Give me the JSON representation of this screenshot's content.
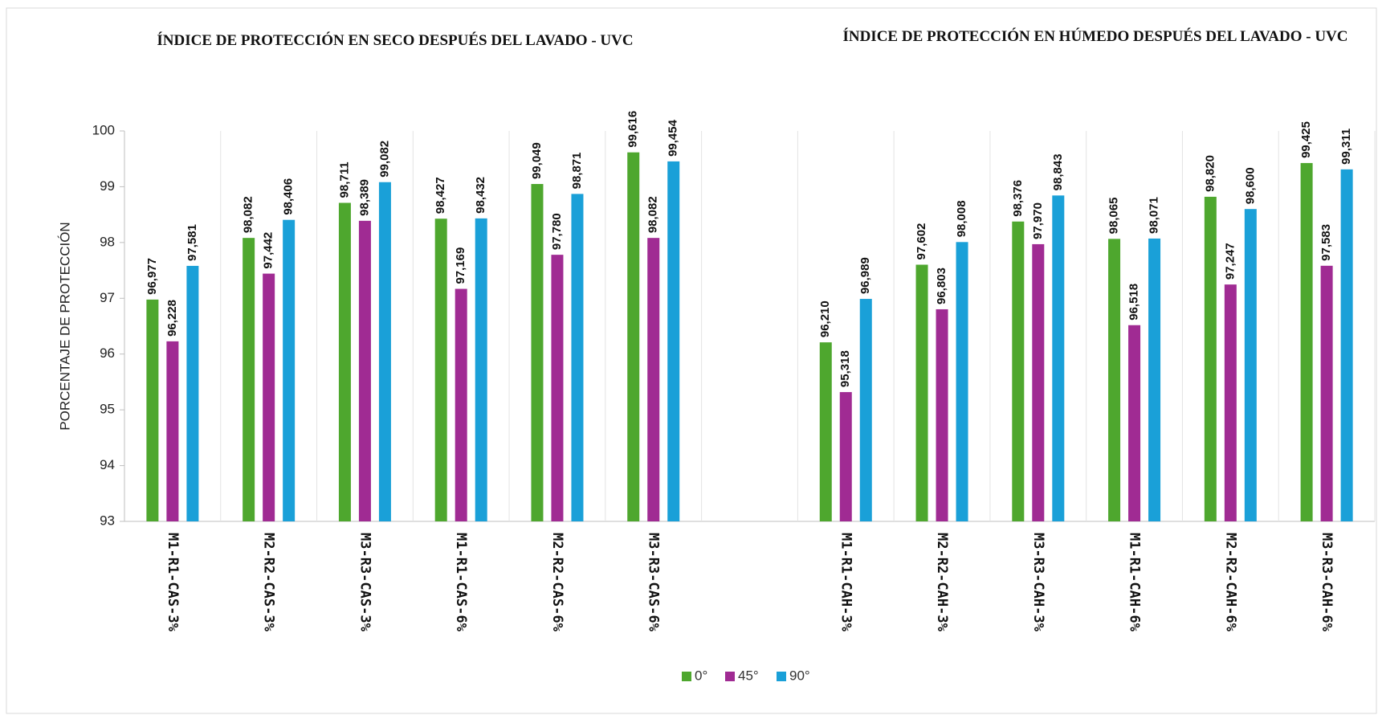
{
  "chart_data": {
    "type": "bar",
    "titles": [
      "ÍNDICE DE PROTECCIÓN EN SECO DESPUÉS DEL LAVADO - UVC",
      "ÍNDICE DE PROTECCIÓN EN HÚMEDO DESPUÉS DEL LAVADO - UVC"
    ],
    "ylabel": "PORCENTAJE DE PROTECCIÓN",
    "categories": [
      "M1-R1-CAS-3%",
      "M2-R2-CAS-3%",
      "M3-R3-CAS-3%",
      "M1-R1-CAS-6%",
      "M2-R2-CAS-6%",
      "M3-R3-CAS-6%",
      null,
      "M1-R1-CAH-3%",
      "M2-R2-CAH-3%",
      "M3-R3-CAH-3%",
      "M1-R1-CAH-6%",
      "M2-R2-CAH-6%",
      "M3-R3-CAH-6%"
    ],
    "series": [
      {
        "name": "0°",
        "color": "#4ea72e",
        "values": [
          96.977,
          98.082,
          98.711,
          98.427,
          99.049,
          99.616,
          null,
          96.21,
          97.602,
          98.376,
          98.065,
          98.82,
          99.425
        ],
        "value_labels": [
          "96,977",
          "98,082",
          "98,711",
          "98,427",
          "99,049",
          "99,616",
          null,
          "96,210",
          "97,602",
          "98,376",
          "98,065",
          "98,820",
          "99,425"
        ]
      },
      {
        "name": "45°",
        "color": "#a02b93",
        "values": [
          96.228,
          97.442,
          98.389,
          97.169,
          97.78,
          98.082,
          null,
          95.318,
          96.803,
          97.97,
          96.518,
          97.247,
          97.583
        ],
        "value_labels": [
          "96,228",
          "97,442",
          "98,389",
          "97,169",
          "97,780",
          "98,082",
          null,
          "95,318",
          "96,803",
          "97,970",
          "96,518",
          "97,247",
          "97,583"
        ]
      },
      {
        "name": "90°",
        "color": "#1aa0d8",
        "values": [
          97.581,
          98.406,
          99.082,
          98.432,
          98.871,
          99.454,
          null,
          96.989,
          98.008,
          98.843,
          98.071,
          98.6,
          99.311
        ],
        "value_labels": [
          "97,581",
          "98,406",
          "99,082",
          "98,432",
          "98,871",
          "99,454",
          null,
          "96,989",
          "98,008",
          "98,843",
          "98,071",
          "98,600",
          "99,311"
        ]
      }
    ],
    "ylim": [
      93,
      100
    ],
    "yticks": [
      93,
      94,
      95,
      96,
      97,
      98,
      99,
      100
    ],
    "grid": true,
    "legend": "bottom"
  }
}
